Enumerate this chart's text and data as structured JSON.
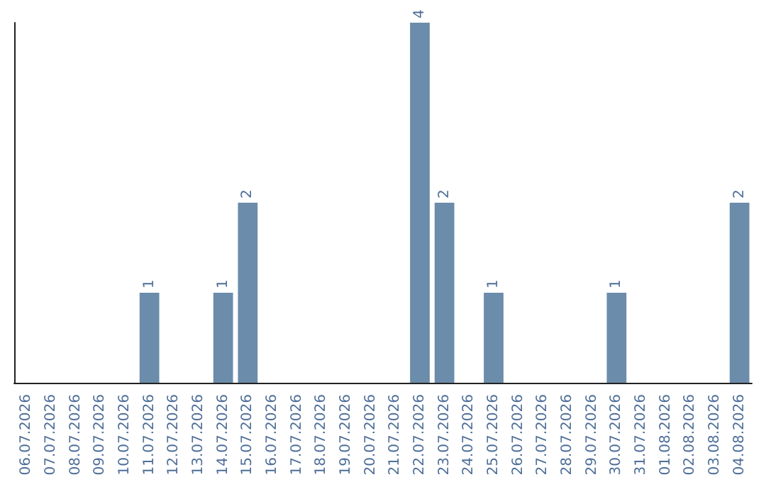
{
  "chart_data": {
    "type": "bar",
    "categories": [
      "06.07.2026",
      "07.07.2026",
      "08.07.2026",
      "09.07.2026",
      "10.07.2026",
      "11.07.2026",
      "12.07.2026",
      "13.07.2026",
      "14.07.2026",
      "15.07.2026",
      "16.07.2026",
      "17.07.2026",
      "18.07.2026",
      "19.07.2026",
      "20.07.2026",
      "21.07.2026",
      "22.07.2026",
      "23.07.2026",
      "24.07.2026",
      "25.07.2026",
      "26.07.2026",
      "27.07.2026",
      "28.07.2026",
      "29.07.2026",
      "30.07.2026",
      "31.07.2026",
      "01.08.2026",
      "02.08.2026",
      "03.08.2026",
      "04.08.2026"
    ],
    "values": [
      0,
      0,
      0,
      0,
      0,
      1,
      0,
      0,
      1,
      2,
      0,
      0,
      0,
      0,
      0,
      0,
      4,
      2,
      0,
      1,
      0,
      0,
      0,
      0,
      1,
      0,
      0,
      0,
      0,
      2
    ],
    "value_labels": [
      null,
      null,
      null,
      null,
      null,
      "1",
      null,
      null,
      "1",
      "2",
      null,
      null,
      null,
      null,
      null,
      null,
      "4",
      "2",
      null,
      "1",
      null,
      null,
      null,
      null,
      "1",
      null,
      null,
      null,
      null,
      "2"
    ],
    "color": "#6b8caa",
    "tick_labels": "x"
  }
}
